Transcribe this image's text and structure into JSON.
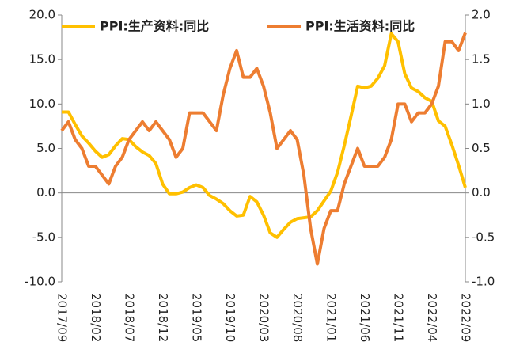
{
  "chart_data": {
    "type": "line",
    "categories": [
      "2017/09",
      null,
      null,
      null,
      null,
      "2018/02",
      null,
      null,
      null,
      null,
      "2018/07",
      null,
      null,
      null,
      null,
      "2018/12",
      null,
      null,
      null,
      null,
      "2019/05",
      null,
      null,
      null,
      null,
      "2019/10",
      null,
      null,
      null,
      null,
      "2020/03",
      null,
      null,
      null,
      null,
      "2020/08",
      null,
      null,
      null,
      null,
      "2021/01",
      null,
      null,
      null,
      null,
      "2021/06",
      null,
      null,
      null,
      null,
      "2021/11",
      null,
      null,
      null,
      null,
      "2022/04",
      null,
      null,
      null,
      null,
      "2022/09"
    ],
    "series": [
      {
        "name": "PPI:生产资料:同比",
        "color": "#FFC000",
        "axis": "y",
        "values": [
          9.1,
          9.1,
          7.7,
          6.4,
          5.6,
          4.7,
          4.0,
          4.3,
          5.3,
          6.1,
          6.0,
          5.2,
          4.6,
          4.2,
          3.3,
          1.0,
          -0.1,
          -0.1,
          0.1,
          0.6,
          0.9,
          0.6,
          -0.3,
          -0.7,
          -1.2,
          -2.0,
          -2.6,
          -2.5,
          -0.4,
          -1.0,
          -2.5,
          -4.5,
          -5.0,
          -4.1,
          -3.3,
          -2.9,
          -2.8,
          -2.7,
          -2.0,
          -0.9,
          0.2,
          2.3,
          5.3,
          8.6,
          12.0,
          11.8,
          12.0,
          12.9,
          14.3,
          17.9,
          17.0,
          13.4,
          11.8,
          11.4,
          10.7,
          10.3,
          8.1,
          7.5,
          5.4,
          3.1,
          0.6
        ]
      },
      {
        "name": "PPI:生活资料:同比",
        "color": "#ED7D31",
        "axis": "y2",
        "values": [
          0.7,
          0.8,
          0.6,
          0.5,
          0.3,
          0.3,
          0.2,
          0.1,
          0.3,
          0.4,
          0.6,
          0.7,
          0.8,
          0.7,
          0.8,
          0.7,
          0.6,
          0.4,
          0.5,
          0.9,
          0.9,
          0.9,
          0.8,
          0.7,
          1.1,
          1.4,
          1.6,
          1.3,
          1.3,
          1.4,
          1.2,
          0.9,
          0.5,
          0.6,
          0.7,
          0.6,
          0.2,
          -0.4,
          -0.8,
          -0.4,
          -0.2,
          -0.2,
          0.1,
          0.3,
          0.5,
          0.3,
          0.3,
          0.3,
          0.4,
          0.6,
          1.0,
          1.0,
          0.8,
          0.9,
          0.9,
          1.0,
          1.2,
          1.7,
          1.7,
          1.6,
          1.8
        ]
      }
    ],
    "ylim": [
      -10,
      20
    ],
    "yticks": [
      {
        "value": -10,
        "label": "-10.0"
      },
      {
        "value": -5,
        "label": "-5.0"
      },
      {
        "value": 0,
        "label": "0.0"
      },
      {
        "value": 5,
        "label": "5.0"
      },
      {
        "value": 10,
        "label": "10.0"
      },
      {
        "value": 15,
        "label": "15.0"
      },
      {
        "value": 20,
        "label": "20.0"
      }
    ],
    "y2lim": [
      -1,
      2
    ],
    "y2ticks": [
      {
        "value": -1,
        "label": "-1.0"
      },
      {
        "value": -0.5,
        "label": "-0.5"
      },
      {
        "value": 0,
        "label": "0.0"
      },
      {
        "value": 0.5,
        "label": "0.5"
      },
      {
        "value": 1,
        "label": "1.0"
      },
      {
        "value": 1.5,
        "label": "1.5"
      },
      {
        "value": 2,
        "label": "2.0"
      }
    ],
    "legend": "top",
    "grid": false
  }
}
